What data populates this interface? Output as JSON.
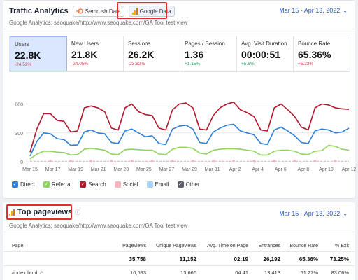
{
  "analytics": {
    "title": "Traffic Analytics",
    "sources": [
      {
        "label": "Semrush Data",
        "active": false
      },
      {
        "label": "Google Data",
        "active": true
      }
    ],
    "date_range": "Mar 15 - Apr 13, 2022",
    "subtitle": "Google Analytics: seoquake/http://www.seoquake.com/GA Tool test view",
    "metrics": [
      {
        "label": "Users",
        "value": "22.8K",
        "delta": "-24.52%",
        "trend": "neg",
        "selected": true
      },
      {
        "label": "New Users",
        "value": "21.8K",
        "delta": "-24.05%",
        "trend": "neg",
        "selected": false
      },
      {
        "label": "Sessions",
        "value": "26.2K",
        "delta": "-23.82%",
        "trend": "neg",
        "selected": false
      },
      {
        "label": "Pages / Session",
        "value": "1.36",
        "delta": "+1.15%",
        "trend": "pos",
        "selected": false
      },
      {
        "label": "Avg. Visit Duration",
        "value": "00:00:51",
        "delta": "+5.6%",
        "trend": "pos",
        "selected": false
      },
      {
        "label": "Bounce Rate",
        "value": "65.36%",
        "delta": "+5.22%",
        "trend": "neg",
        "selected": false
      }
    ],
    "legend": [
      {
        "label": "Direct",
        "color": "#2f7fd6",
        "checked": true
      },
      {
        "label": "Referral",
        "color": "#8fd45c",
        "checked": true
      },
      {
        "label": "Search",
        "color": "#b3162c",
        "checked": true
      },
      {
        "label": "Social",
        "color": "#f4b6bf",
        "checked": false
      },
      {
        "label": "Email",
        "color": "#a9d4f5",
        "checked": false
      },
      {
        "label": "Other",
        "color": "#5b5f6b",
        "checked": true
      }
    ]
  },
  "chart_data": {
    "type": "line",
    "x_ticks": [
      "Mar 15",
      "Mar 17",
      "Mar 19",
      "Mar 21",
      "Mar 23",
      "Mar 25",
      "Mar 27",
      "Mar 29",
      "Mar 31",
      "Apr 2",
      "Apr 4",
      "Apr 6",
      "Apr 8",
      "Apr 10",
      "Apr 12"
    ],
    "y_ticks": [
      0,
      300,
      600
    ],
    "ylim": [
      0,
      800
    ],
    "grid": true,
    "series": [
      {
        "name": "Search",
        "color": "#b3162c",
        "values": [
          100,
          340,
          500,
          500,
          430,
          420,
          310,
          320,
          560,
          580,
          560,
          520,
          350,
          330,
          560,
          600,
          520,
          490,
          480,
          350,
          330,
          540,
          600,
          610,
          560,
          340,
          330,
          480,
          560,
          600,
          620,
          540,
          510,
          470,
          330,
          320,
          560,
          600,
          540,
          470,
          360,
          330,
          560,
          600,
          590,
          560,
          550,
          545
        ]
      },
      {
        "name": "Direct",
        "color": "#2f7fd6",
        "values": [
          60,
          210,
          300,
          290,
          240,
          230,
          170,
          175,
          310,
          330,
          300,
          290,
          200,
          190,
          320,
          340,
          300,
          260,
          270,
          190,
          180,
          340,
          370,
          380,
          340,
          200,
          190,
          310,
          350,
          380,
          390,
          320,
          300,
          280,
          190,
          180,
          330,
          360,
          320,
          270,
          200,
          190,
          320,
          340,
          330,
          300,
          310,
          350
        ]
      },
      {
        "name": "Referral",
        "color": "#8fd45c",
        "values": [
          30,
          80,
          110,
          110,
          100,
          95,
          70,
          75,
          130,
          140,
          130,
          120,
          80,
          75,
          125,
          130,
          125,
          120,
          120,
          80,
          75,
          130,
          150,
          150,
          140,
          90,
          80,
          120,
          130,
          135,
          135,
          130,
          120,
          110,
          70,
          70,
          110,
          120,
          120,
          110,
          80,
          75,
          110,
          115,
          170,
          160,
          130,
          120
        ]
      },
      {
        "name": "Social",
        "color": "#f4b6bf",
        "values": [
          5,
          5,
          5,
          5,
          5,
          5,
          5,
          5,
          5,
          5,
          5,
          5,
          5,
          5,
          5,
          5,
          5,
          5,
          5,
          5,
          5,
          5,
          5,
          5,
          5,
          5,
          5,
          5,
          5,
          5,
          5,
          5,
          5,
          5,
          5,
          5,
          5,
          5,
          5,
          5,
          5,
          5,
          5,
          5,
          5,
          5,
          5,
          5
        ]
      },
      {
        "name": "Email",
        "color": "#a9d4f5",
        "values": [
          2,
          2,
          2,
          2,
          2,
          2,
          2,
          2,
          2,
          2,
          2,
          2,
          2,
          2,
          2,
          2,
          2,
          2,
          2,
          2,
          2,
          2,
          2,
          2,
          2,
          2,
          2,
          2,
          2,
          2,
          2,
          2,
          2,
          2,
          2,
          2,
          2,
          2,
          2,
          2,
          2,
          2,
          2,
          2,
          2,
          2,
          2,
          2
        ]
      },
      {
        "name": "Other",
        "color": "#5b5f6b",
        "values": [
          1,
          1,
          1,
          1,
          1,
          1,
          1,
          1,
          1,
          1,
          1,
          1,
          1,
          1,
          1,
          1,
          1,
          1,
          1,
          1,
          1,
          1,
          1,
          1,
          1,
          1,
          1,
          1,
          1,
          1,
          1,
          1,
          1,
          1,
          1,
          1,
          1,
          1,
          1,
          1,
          1,
          1,
          1,
          1,
          1,
          1,
          1,
          1
        ]
      }
    ]
  },
  "pageviews": {
    "title": "Top pageviews",
    "date_range": "Mar 15 - Apr 13, 2022",
    "subtitle": "Google Analytics: seoquake/http://www.seoquake.com/GA Tool test view",
    "columns": [
      "Page",
      "Pageviews",
      "Unique Pageviews",
      "Avg. Time on Page",
      "Entrances",
      "Bounce Rate",
      "% Exit"
    ],
    "total": [
      "",
      "35,758",
      "31,152",
      "02:19",
      "26,192",
      "65.36%",
      "73.25%"
    ],
    "rows": [
      [
        "/index.html",
        "10,593",
        "13,666",
        "04:41",
        "13,413",
        "51.27%",
        "83.06%"
      ]
    ]
  }
}
